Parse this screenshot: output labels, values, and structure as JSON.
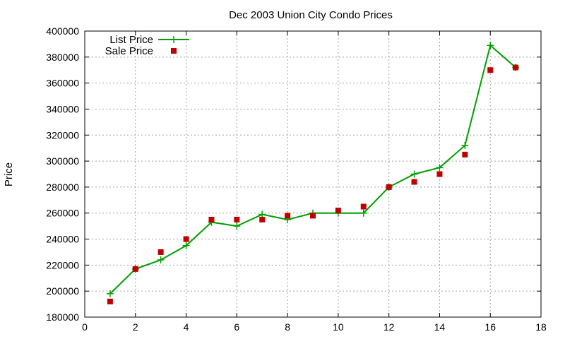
{
  "chart_data": {
    "type": "line",
    "title": "Dec 2003 Union City Condo Prices",
    "xlabel": "",
    "ylabel": "Price",
    "xlim": [
      0,
      18
    ],
    "ylim": [
      180000,
      400000
    ],
    "x_ticks": [
      "0",
      "2",
      "4",
      "6",
      "8",
      "10",
      "12",
      "14",
      "16",
      "18"
    ],
    "y_ticks": [
      "180000",
      "200000",
      "220000",
      "240000",
      "260000",
      "280000",
      "300000",
      "320000",
      "340000",
      "360000",
      "380000",
      "400000"
    ],
    "grid": true,
    "legend_position": "top-left",
    "series": [
      {
        "name": "List Price",
        "style": "line-with-plus-markers",
        "color": "#00a000",
        "points": [
          [
            1,
            198000
          ],
          [
            2,
            217000
          ],
          [
            3,
            224000
          ],
          [
            4,
            235000
          ],
          [
            5,
            253000
          ],
          [
            6,
            250000
          ],
          [
            7,
            259000
          ],
          [
            8,
            255000
          ],
          [
            9,
            260000
          ],
          [
            10,
            260000
          ],
          [
            11,
            260000
          ],
          [
            12,
            280000
          ],
          [
            13,
            290000
          ],
          [
            14,
            295000
          ],
          [
            15,
            312000
          ],
          [
            16,
            389000
          ],
          [
            17,
            372000
          ]
        ]
      },
      {
        "name": "Sale Price",
        "style": "square-markers",
        "color": "#c00000",
        "points": [
          [
            1,
            192000
          ],
          [
            2,
            217000
          ],
          [
            3,
            230000
          ],
          [
            4,
            240000
          ],
          [
            5,
            255000
          ],
          [
            6,
            255000
          ],
          [
            7,
            255000
          ],
          [
            8,
            258000
          ],
          [
            9,
            258000
          ],
          [
            10,
            262000
          ],
          [
            11,
            265000
          ],
          [
            12,
            280000
          ],
          [
            13,
            284000
          ],
          [
            14,
            290000
          ],
          [
            15,
            305000
          ],
          [
            16,
            370000
          ],
          [
            17,
            372000
          ]
        ]
      }
    ]
  }
}
